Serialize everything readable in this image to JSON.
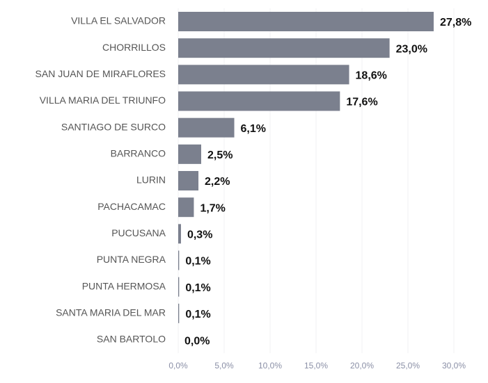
{
  "chart_data": {
    "type": "bar",
    "orientation": "horizontal",
    "categories": [
      "VILLA EL SALVADOR",
      "CHORRILLOS",
      "SAN JUAN DE MIRAFLORES",
      "VILLA MARIA DEL TRIUNFO",
      "SANTIAGO DE SURCO",
      "BARRANCO",
      "LURIN",
      "PACHACAMAC",
      "PUCUSANA",
      "PUNTA NEGRA",
      "PUNTA HERMOSA",
      "SANTA MARIA DEL MAR",
      "SAN BARTOLO"
    ],
    "values": [
      27.8,
      23.0,
      18.6,
      17.6,
      6.1,
      2.5,
      2.2,
      1.7,
      0.3,
      0.1,
      0.1,
      0.1,
      0.0
    ],
    "value_labels": [
      "27,8%",
      "23,0%",
      "18,6%",
      "17,6%",
      "6,1%",
      "2,5%",
      "2,2%",
      "1,7%",
      "0,3%",
      "0,1%",
      "0,1%",
      "0,1%",
      "0,0%"
    ],
    "color": "#7b808e",
    "xlim": [
      0,
      30
    ],
    "xticks": [
      {
        "value": 0,
        "label": "0,0%"
      },
      {
        "value": 5,
        "label": "5,0%"
      },
      {
        "value": 10,
        "label": "10,0%"
      },
      {
        "value": 15,
        "label": "15,0%"
      },
      {
        "value": 20,
        "label": "20,0%"
      },
      {
        "value": 25,
        "label": "25,0%"
      },
      {
        "value": 30,
        "label": "30,0%"
      }
    ],
    "grid": true
  }
}
